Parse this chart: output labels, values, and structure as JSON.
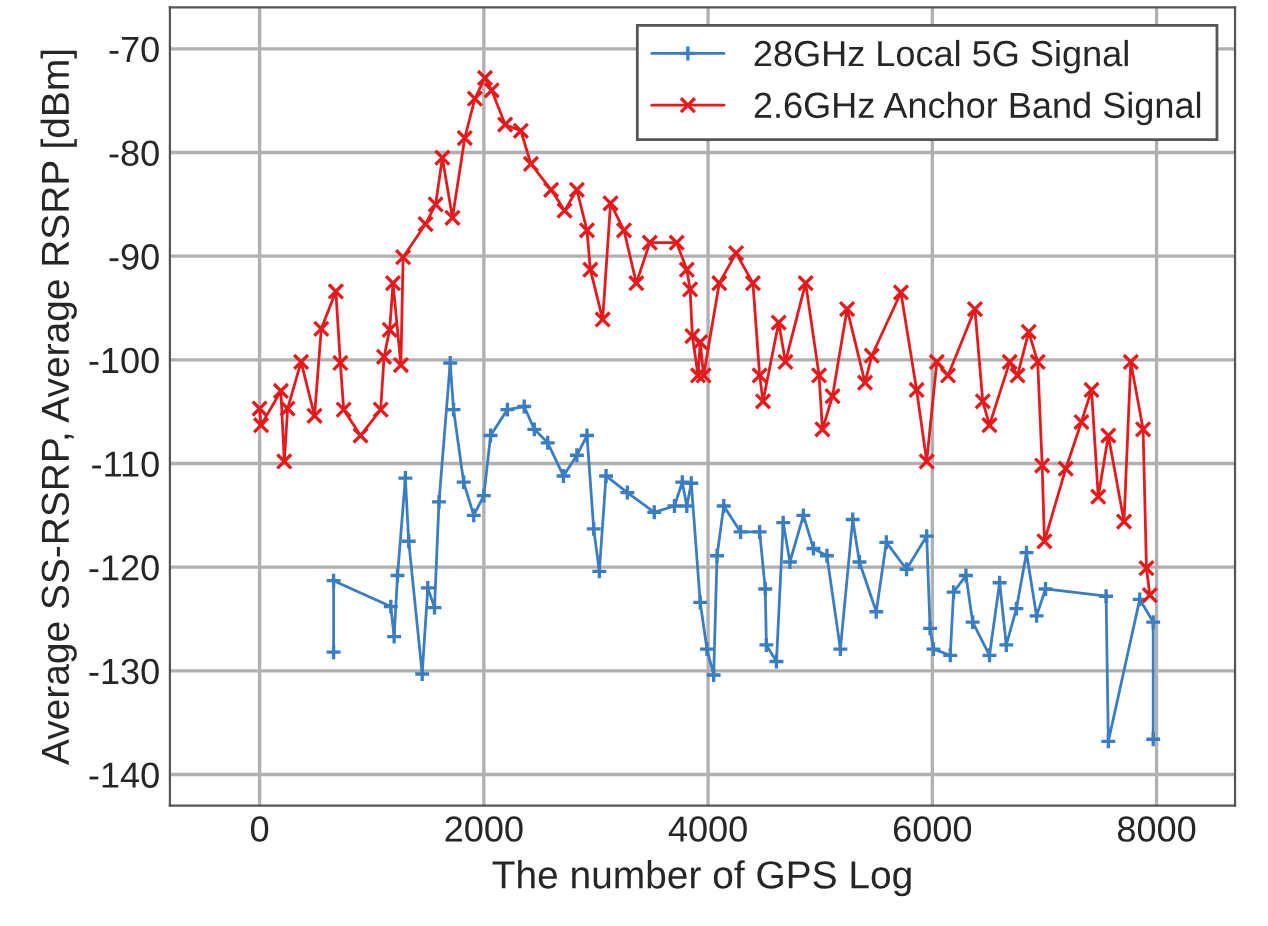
{
  "chart_data": {
    "type": "line",
    "xlabel": "The number of GPS Log",
    "ylabel": "Average SS-RSRP, Average RSRP [dBm]",
    "xlim": [
      -800,
      8700
    ],
    "xticks": [
      0,
      2000,
      4000,
      6000,
      8000
    ],
    "ylim": [
      -143,
      -66
    ],
    "yticks": [
      -140,
      -130,
      -120,
      -110,
      -100,
      -90,
      -80,
      -70
    ],
    "grid": true,
    "legend": "top right",
    "line_style": "solid",
    "series": [
      {
        "name": "28GHz Local 5G Signal",
        "color": "#3a7dc0",
        "marker": "plus",
        "x": [
          660,
          660,
          1170,
          1200,
          1230,
          1300,
          1330,
          1450,
          1500,
          1560,
          1600,
          1700,
          1730,
          1820,
          1910,
          2000,
          2060,
          2210,
          2360,
          2450,
          2570,
          2710,
          2830,
          2920,
          2980,
          3030,
          3090,
          3280,
          3520,
          3700,
          3770,
          3810,
          3850,
          3930,
          3990,
          4050,
          4080,
          4140,
          4290,
          4460,
          4510,
          4520,
          4610,
          4670,
          4730,
          4850,
          4940,
          5060,
          5180,
          5290,
          5350,
          5500,
          5590,
          5770,
          5950,
          5980,
          6010,
          6160,
          6190,
          6300,
          6360,
          6510,
          6600,
          6660,
          6750,
          6840,
          6930,
          7010,
          7550,
          7570,
          7850,
          7970,
          7970
        ],
        "values": [
          -128.2,
          -121.3,
          -123.8,
          -126.7,
          -120.8,
          -111.4,
          -117.5,
          -130.3,
          -122.0,
          -123.9,
          -113.7,
          -100.3,
          -104.8,
          -111.8,
          -115.0,
          -113.1,
          -107.3,
          -104.8,
          -104.5,
          -106.7,
          -108.0,
          -111.2,
          -109.2,
          -107.3,
          -116.3,
          -120.4,
          -111.2,
          -112.8,
          -114.7,
          -114.1,
          -111.8,
          -114.1,
          -111.9,
          -123.4,
          -127.9,
          -130.4,
          -118.9,
          -114.1,
          -116.6,
          -116.6,
          -122.1,
          -127.5,
          -129.1,
          -115.7,
          -119.5,
          -115.0,
          -118.2,
          -118.9,
          -127.9,
          -115.4,
          -119.5,
          -124.3,
          -117.6,
          -120.2,
          -117.0,
          -125.9,
          -127.9,
          -128.5,
          -122.4,
          -120.8,
          -125.3,
          -128.5,
          -121.5,
          -127.5,
          -124.0,
          -118.6,
          -124.7,
          -122.1,
          -122.8,
          -136.8,
          -123.1,
          -125.3,
          -136.6
        ]
      },
      {
        "name": "2.6GHz Anchor Band Signal",
        "color": "#e41a1c",
        "marker": "cross",
        "x": [
          0,
          13,
          190,
          220,
          250,
          370,
          490,
          550,
          680,
          720,
          750,
          900,
          1080,
          1110,
          1160,
          1190,
          1260,
          1280,
          1480,
          1570,
          1630,
          1720,
          1830,
          1920,
          2010,
          2070,
          2190,
          2330,
          2420,
          2600,
          2720,
          2830,
          2920,
          2950,
          3060,
          3130,
          3250,
          3360,
          3480,
          3720,
          3810,
          3840,
          3860,
          3910,
          3930,
          3960,
          4100,
          4250,
          4400,
          4460,
          4490,
          4630,
          4690,
          4870,
          4990,
          5020,
          5110,
          5240,
          5400,
          5460,
          5720,
          5860,
          5950,
          6040,
          6140,
          6380,
          6450,
          6510,
          6690,
          6760,
          6860,
          6940,
          6980,
          7000,
          7190,
          7330,
          7420,
          7480,
          7570,
          7710,
          7770,
          7880,
          7910,
          7940
        ],
        "values": [
          -104.7,
          -106.3,
          -103.0,
          -109.8,
          -104.7,
          -100.2,
          -105.4,
          -97.0,
          -93.4,
          -100.3,
          -104.8,
          -107.3,
          -104.8,
          -99.7,
          -97.1,
          -92.6,
          -100.5,
          -90.1,
          -86.9,
          -85.0,
          -80.5,
          -86.3,
          -78.6,
          -74.8,
          -72.8,
          -74.0,
          -77.3,
          -77.9,
          -81.1,
          -83.6,
          -85.6,
          -83.6,
          -87.5,
          -91.3,
          -96.1,
          -84.9,
          -87.5,
          -92.6,
          -88.7,
          -88.7,
          -91.3,
          -93.2,
          -97.7,
          -101.5,
          -98.3,
          -101.5,
          -92.6,
          -89.7,
          -92.6,
          -101.5,
          -104.0,
          -96.4,
          -100.2,
          -92.6,
          -101.5,
          -106.7,
          -103.5,
          -95.1,
          -102.2,
          -99.6,
          -93.5,
          -102.9,
          -109.8,
          -100.2,
          -101.5,
          -95.1,
          -104.0,
          -106.3,
          -100.2,
          -101.5,
          -97.3,
          -100.2,
          -110.2,
          -117.5,
          -110.5,
          -106.0,
          -102.9,
          -113.2,
          -107.3,
          -115.6,
          -100.2,
          -106.7,
          -120.1,
          -122.7
        ]
      }
    ]
  }
}
